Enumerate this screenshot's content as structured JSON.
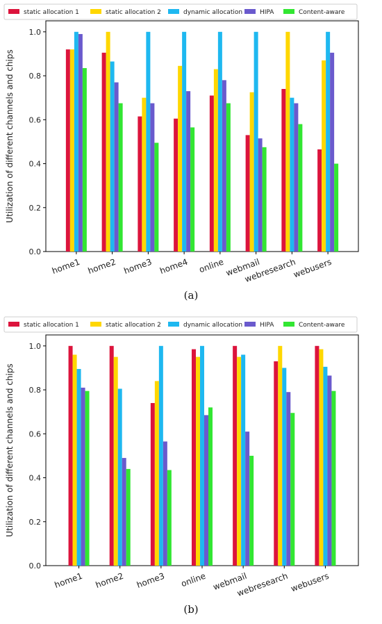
{
  "chart_data": [
    {
      "type": "bar",
      "caption": "(a)",
      "ylabel": "Utilization of different channels and chips",
      "xlabel": "",
      "ylim": [
        0,
        1.05
      ],
      "yticks": [
        "0.0",
        "0.2",
        "0.4",
        "0.6",
        "0.8",
        "1.0"
      ],
      "legend_position": "top",
      "categories": [
        "home1",
        "home2",
        "home3",
        "home4",
        "online",
        "webmail",
        "webresearch",
        "webusers"
      ],
      "series": [
        {
          "name": "static allocation 1",
          "color": "#DC143C",
          "values": [
            0.92,
            0.905,
            0.615,
            0.605,
            0.71,
            0.53,
            0.74,
            0.465
          ]
        },
        {
          "name": "static allocation 2",
          "color": "#FFD700",
          "values": [
            0.92,
            1.0,
            0.7,
            0.845,
            0.83,
            0.725,
            1.0,
            0.87
          ]
        },
        {
          "name": "dynamic allocation",
          "color": "#1EB8F0",
          "values": [
            1.0,
            0.865,
            1.0,
            1.0,
            1.0,
            1.0,
            0.7,
            1.0
          ]
        },
        {
          "name": "HIPA",
          "color": "#6A5ACD",
          "values": [
            0.99,
            0.77,
            0.675,
            0.73,
            0.78,
            0.515,
            0.675,
            0.905
          ]
        },
        {
          "name": "Content-aware",
          "color": "#32E632",
          "values": [
            0.835,
            0.675,
            0.495,
            0.565,
            0.675,
            0.475,
            0.58,
            0.4
          ]
        }
      ]
    },
    {
      "type": "bar",
      "caption": "(b)",
      "ylabel": "Utilization of different channels and chips",
      "xlabel": "",
      "ylim": [
        0,
        1.05
      ],
      "yticks": [
        "0.0",
        "0.2",
        "0.4",
        "0.6",
        "0.8",
        "1.0"
      ],
      "legend_position": "top",
      "categories": [
        "home1",
        "home2",
        "home3",
        "online",
        "webmail",
        "webresearch",
        "webusers"
      ],
      "series": [
        {
          "name": "static allocation 1",
          "color": "#DC143C",
          "values": [
            1.0,
            1.0,
            0.74,
            0.985,
            1.0,
            0.93,
            1.0
          ]
        },
        {
          "name": "static allocation 2",
          "color": "#FFD700",
          "values": [
            0.96,
            0.95,
            0.84,
            0.95,
            0.95,
            1.0,
            0.985
          ]
        },
        {
          "name": "dynamic allocation",
          "color": "#1EB8F0",
          "values": [
            0.895,
            0.805,
            1.0,
            1.0,
            0.96,
            0.9,
            0.905
          ]
        },
        {
          "name": "HIPA",
          "color": "#6A5ACD",
          "values": [
            0.81,
            0.49,
            0.565,
            0.685,
            0.61,
            0.79,
            0.865
          ]
        },
        {
          "name": "Content-aware",
          "color": "#32E632",
          "values": [
            0.795,
            0.44,
            0.435,
            0.72,
            0.5,
            0.695,
            0.795
          ]
        }
      ]
    }
  ]
}
